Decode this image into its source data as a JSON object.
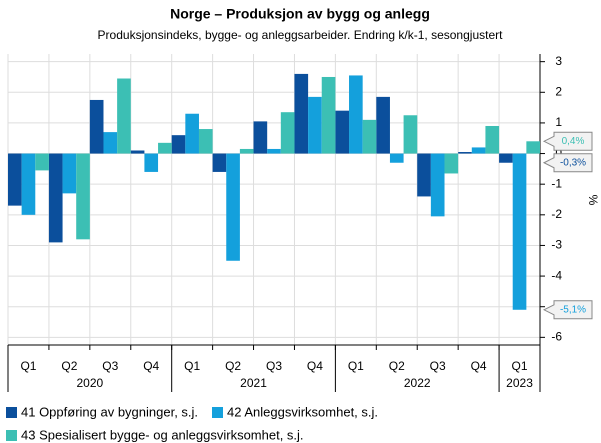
{
  "chart_data": {
    "type": "bar",
    "title": "Norge – Produksjon av bygg og anlegg",
    "subtitle": "Produksjonsindeks, bygge- og anleggsarbeider. Endring k/k-1, sesongjustert",
    "y_label": "%",
    "categories": [
      "Q1",
      "Q2",
      "Q3",
      "Q4",
      "Q1",
      "Q2",
      "Q3",
      "Q4",
      "Q1",
      "Q2",
      "Q3",
      "Q4",
      "Q1"
    ],
    "years": [
      "2020",
      "2021",
      "2022",
      "2023"
    ],
    "series": [
      {
        "name": "41 Oppføring av bygninger, s.j.",
        "color": "#0b4f9c",
        "values": [
          -1.7,
          -2.9,
          1.75,
          0.1,
          0.6,
          -0.6,
          1.05,
          2.6,
          1.4,
          1.85,
          -1.4,
          0.05,
          -0.3
        ],
        "value_labels": [
          null,
          null,
          null,
          null,
          null,
          null,
          null,
          null,
          null,
          null,
          null,
          null,
          "-0,3%"
        ]
      },
      {
        "name": "42 Anleggsvirksomhet, s.j.",
        "color": "#14a0dc",
        "values": [
          -2.0,
          -1.3,
          0.7,
          -0.6,
          1.3,
          -3.5,
          0.15,
          1.85,
          2.55,
          -0.3,
          -2.05,
          0.2,
          -5.1
        ],
        "value_labels": [
          null,
          null,
          null,
          null,
          null,
          null,
          null,
          null,
          null,
          null,
          null,
          null,
          "-5,1%"
        ]
      },
      {
        "name": "43 Spesialisert bygge- og anleggsvirksomhet, s.j.",
        "color": "#3cbfb4",
        "values": [
          -0.55,
          -2.8,
          2.45,
          0.35,
          0.8,
          0.15,
          1.35,
          2.5,
          1.1,
          1.25,
          -0.65,
          0.9,
          0.4
        ],
        "value_labels": [
          null,
          null,
          null,
          null,
          null,
          null,
          null,
          null,
          null,
          null,
          null,
          null,
          "0,4%"
        ]
      }
    ],
    "ylim": [
      -6.25,
      3.25
    ],
    "yticks": [
      -6,
      -5,
      -4,
      -3,
      -2,
      -1,
      0,
      1,
      2,
      3
    ],
    "grid": true
  }
}
